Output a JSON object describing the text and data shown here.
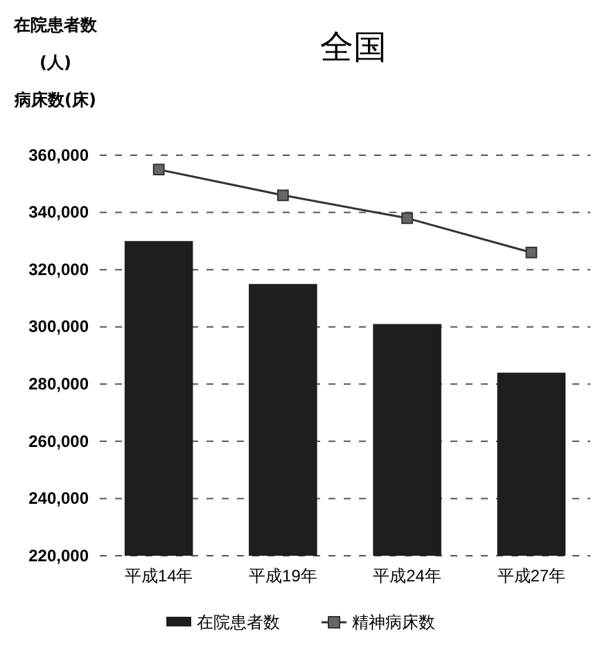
{
  "chart_data": {
    "type": "bar",
    "title": "全国",
    "ylabel": "在院患者数\n(人)\n病床数(床)",
    "categories": [
      "平成14年",
      "平成19年",
      "平成24年",
      "平成27年"
    ],
    "series": [
      {
        "name": "在院患者数",
        "color": "#1e1e1e",
        "values": [
          330000,
          315000,
          301000,
          284000
        ]
      },
      {
        "name": "精神病床数",
        "type": "line",
        "color": "#333333",
        "marker": "square",
        "values": [
          355000,
          346000,
          338000,
          326000
        ]
      }
    ],
    "ylim": [
      220000,
      360000
    ],
    "yticks": [
      {
        "value": 220000,
        "label": "220,000"
      },
      {
        "value": 240000,
        "label": "240,000"
      },
      {
        "value": 260000,
        "label": "260,000"
      },
      {
        "value": 280000,
        "label": "280,000"
      },
      {
        "value": 300000,
        "label": "300,000"
      },
      {
        "value": 320000,
        "label": "320,000"
      },
      {
        "value": 340000,
        "label": "340,000"
      },
      {
        "value": 360000,
        "label": "360,000"
      }
    ],
    "grid": "y",
    "legend": "bottom",
    "line_style": "solid"
  }
}
